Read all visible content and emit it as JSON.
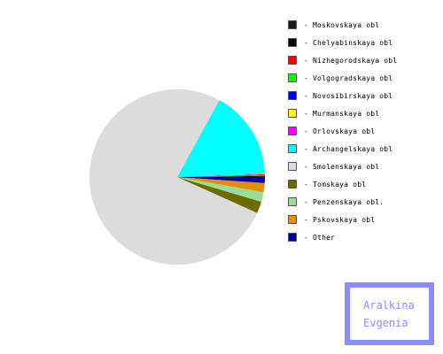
{
  "chart_data": {
    "type": "pie",
    "title": "",
    "categories": [
      "Moskovskaya obl",
      "Chelyabinskaya obl",
      "Nizhegorodskaya obl",
      "Volgogradskaya obl",
      "Novosibirskaya obl",
      "Murmanskaya obl",
      "Orlovskaya obl",
      "Archangelskaya obl",
      "Smolenskaya obl",
      "Tomskaya obl",
      "Penzenskaya obl.",
      "Pskovskaya obl",
      "Other"
    ],
    "values": [
      0.1,
      0.1,
      0.1,
      0.1,
      0.1,
      0.1,
      0.1,
      16.5,
      77.0,
      2.2,
      1.8,
      1.7,
      1.1
    ],
    "colors": [
      "#1a1a1a",
      "#000000",
      "#ff0000",
      "#00ff00",
      "#0000ff",
      "#ffff00",
      "#ff00ff",
      "#00ffff",
      "#dcdcdc",
      "#6b6b00",
      "#99dd99",
      "#e09000",
      "#000099"
    ],
    "legend_position": "right",
    "legend_prefix": "- "
  },
  "author": {
    "line1": "Aralkina",
    "line2": "Evgenia",
    "color": "#8c8cff"
  }
}
